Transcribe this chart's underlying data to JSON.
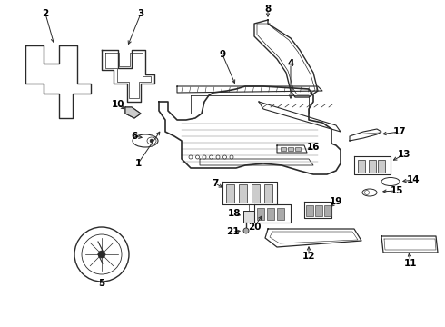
{
  "bg_color": "#ffffff",
  "line_color": "#2a2a2a",
  "text_color": "#000000",
  "figw": 4.9,
  "figh": 3.6,
  "dpi": 100
}
